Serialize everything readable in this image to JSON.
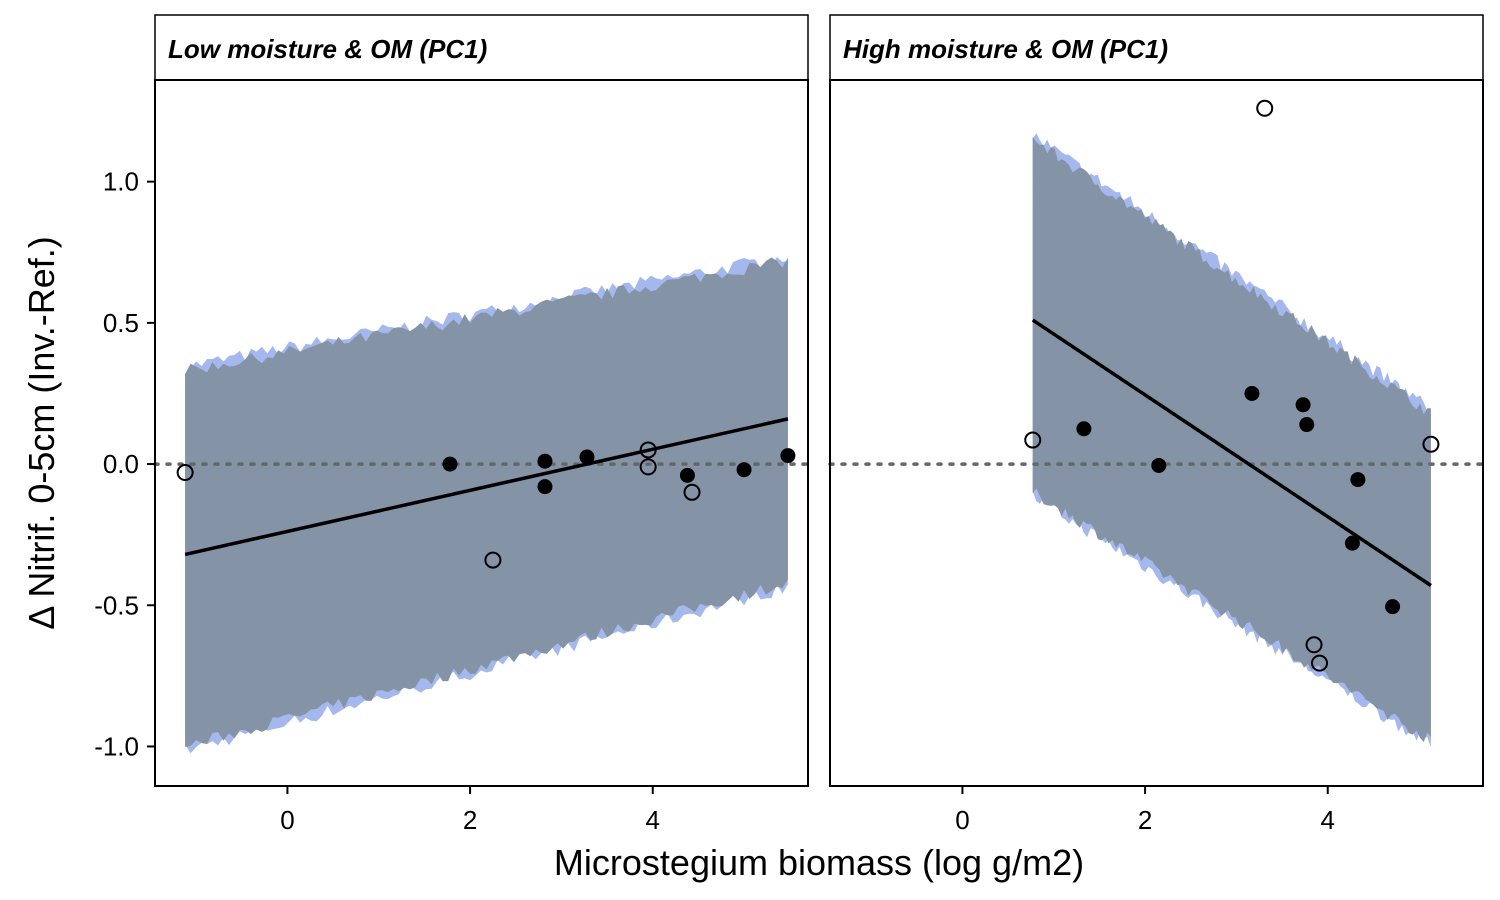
{
  "chart_data": {
    "type": "scatter",
    "xlabel": "Microstegium biomass (log g/m2)",
    "ylabel": "Δ Nitrif. 0-5cm (Inv.-Ref.)",
    "xlim": [
      -1.45,
      5.7
    ],
    "ylim": [
      -1.14,
      1.36
    ],
    "xticks": [
      0,
      2,
      4
    ],
    "yticks": [
      -1.0,
      -0.5,
      0.0,
      0.5,
      1.0
    ],
    "ytick_labels": [
      "-1.0",
      "-0.5",
      "0.0",
      "0.5",
      "1.0"
    ],
    "reference_line_y": 0,
    "colors": {
      "band_blue": "#a5b8ee",
      "band_gray": "#8593a7",
      "line": "#000000",
      "reference_line": "#666666"
    },
    "panels": [
      {
        "title": "Low moisture & OM (PC1)",
        "fit_line": {
          "x": [
            -1.12,
            5.48
          ],
          "y": [
            -0.32,
            0.16
          ]
        },
        "band": {
          "x": [
            -1.12,
            5.48
          ],
          "lower": [
            -1.0,
            -0.42
          ],
          "upper": [
            0.33,
            0.72
          ]
        },
        "filled_points": {
          "x": [
            1.78,
            2.82,
            2.82,
            3.28,
            4.38,
            5.0,
            5.48
          ],
          "y": [
            0.0,
            0.01,
            -0.08,
            0.025,
            -0.04,
            -0.02,
            0.03
          ]
        },
        "open_points": {
          "x": [
            -1.12,
            2.25,
            3.95,
            3.95,
            4.43
          ],
          "y": [
            -0.03,
            -0.34,
            0.05,
            -0.01,
            -0.1
          ]
        }
      },
      {
        "title": "High moisture & OM (PC1)",
        "fit_line": {
          "x": [
            0.77,
            5.13
          ],
          "y": [
            0.51,
            -0.43
          ]
        },
        "band": {
          "x": [
            0.77,
            5.13
          ],
          "lower": [
            -0.1,
            -0.98
          ],
          "upper": [
            1.15,
            0.18
          ]
        },
        "filled_points": {
          "x": [
            1.33,
            2.15,
            3.17,
            3.73,
            3.77,
            4.27,
            4.33,
            4.71
          ],
          "y": [
            0.125,
            -0.005,
            0.25,
            0.21,
            0.14,
            -0.28,
            -0.055,
            -0.505
          ]
        },
        "open_points": {
          "x": [
            0.77,
            3.31,
            3.85,
            3.91,
            5.13
          ],
          "y": [
            0.085,
            1.26,
            -0.64,
            -0.705,
            0.07
          ]
        }
      }
    ]
  }
}
